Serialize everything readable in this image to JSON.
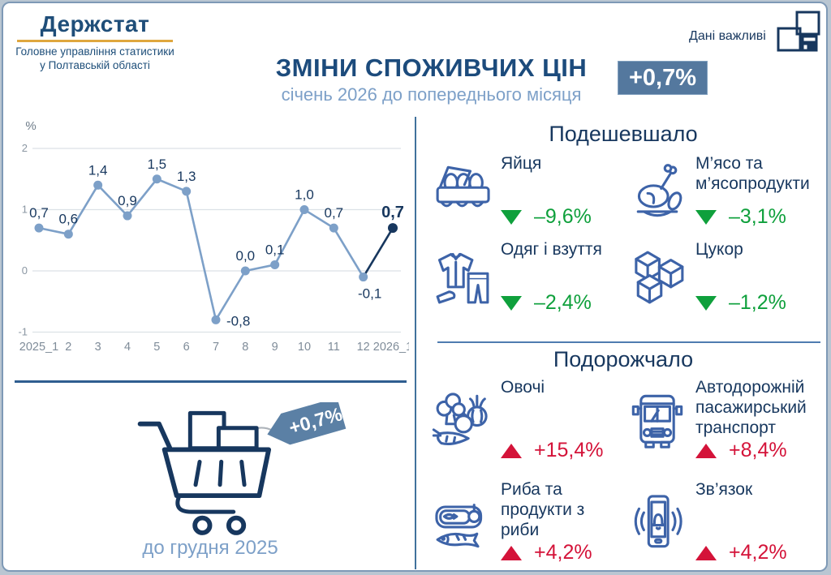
{
  "header": {
    "logo_title": "Держстат",
    "logo_sub_line1": "Головне управління статистики",
    "logo_sub_line2": "у Полтавській області",
    "brand_right": "Дані важливі",
    "title": "ЗМІНИ СПОЖИВЧИХ ЦІН",
    "subtitle": "січень 2026 до попереднього місяця",
    "badge": "+0,7%"
  },
  "chart_data": {
    "type": "line",
    "title": "",
    "xlabel": "",
    "ylabel": "%",
    "categories": [
      "2025_1",
      "2",
      "3",
      "4",
      "5",
      "6",
      "7",
      "8",
      "9",
      "10",
      "11",
      "12",
      "2026_1"
    ],
    "values": [
      0.7,
      0.6,
      1.4,
      0.9,
      1.5,
      1.3,
      -0.8,
      0.0,
      0.1,
      1.0,
      0.7,
      -0.1,
      0.7
    ],
    "point_labels": [
      "0,7",
      "0,6",
      "1,4",
      "0,9",
      "1,5",
      "1,3",
      "-0,8",
      "0,0",
      "0,1",
      "1,0",
      "0,7",
      "-0,1",
      "0,7"
    ],
    "yticks": [
      2,
      1,
      0,
      -1
    ],
    "ylim": [
      -1.3,
      2.3
    ],
    "grid": true,
    "legend": "none",
    "line_color": "#7da0c8",
    "highlight_color": "#17375e",
    "highlight_last_segment": true
  },
  "cart": {
    "tag": "+0,7%",
    "caption": "до грудня 2025"
  },
  "cheaper": {
    "title": "Подешевшало",
    "items": [
      {
        "name": "Яйця",
        "value": "–9,6%",
        "icon": "eggs-icon"
      },
      {
        "name": "М’ясо та м’ясопродукти",
        "value": "–3,1%",
        "icon": "meat-icon"
      },
      {
        "name": "Одяг і взуття",
        "value": "–2,4%",
        "icon": "clothing-icon"
      },
      {
        "name": "Цукор",
        "value": "–1,2%",
        "icon": "sugar-icon"
      }
    ]
  },
  "expensive": {
    "title": "Подорожчало",
    "items": [
      {
        "name": "Овочі",
        "value": "+15,4%",
        "icon": "vegetables-icon"
      },
      {
        "name": "Автодорожній пасажирський транспорт",
        "value": "+8,4%",
        "icon": "bus-icon"
      },
      {
        "name": "Риба та продукти з риби",
        "value": "+4,2%",
        "icon": "fish-icon"
      },
      {
        "name": "Зв’язок",
        "value": "+4,2%",
        "icon": "phone-icon"
      }
    ]
  },
  "colors": {
    "navy": "#17375e",
    "steel": "#7da0c8",
    "accent": "#54789e",
    "green": "#0fa03c",
    "red": "#d41339",
    "icon_blue": "#3d63a8",
    "gold": "#dfa73e"
  }
}
